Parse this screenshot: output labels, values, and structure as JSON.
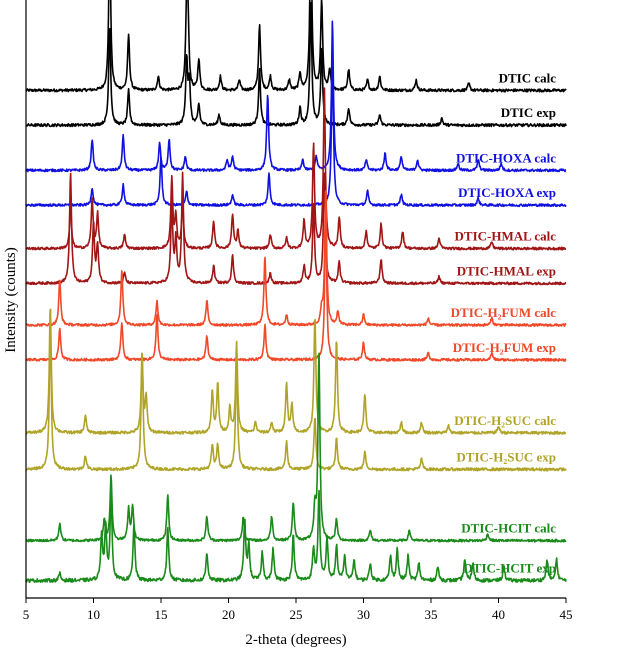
{
  "chart_data": {
    "type": "line",
    "xlabel": "2-theta (degrees)",
    "ylabel": "Intensity (counts)",
    "xlim": [
      5,
      45
    ],
    "xticks": [
      5,
      10,
      15,
      20,
      25,
      30,
      35,
      40,
      45
    ],
    "yticks_shown": false,
    "grid": false,
    "series": [
      {
        "name": "DTIC calc",
        "color": "#000000",
        "baseline": 8.0,
        "noise": 0.08,
        "peaks": [
          [
            11.2,
            4.6
          ],
          [
            12.6,
            1.6
          ],
          [
            14.8,
            0.4
          ],
          [
            16.9,
            2.3
          ],
          [
            17.0,
            1.7
          ],
          [
            17.8,
            0.9
          ],
          [
            19.4,
            0.4
          ],
          [
            20.8,
            0.3
          ],
          [
            22.3,
            1.9
          ],
          [
            23.1,
            0.4
          ],
          [
            24.5,
            0.3
          ],
          [
            25.3,
            0.5
          ],
          [
            26.1,
            5.0
          ],
          [
            26.9,
            2.6
          ],
          [
            27.5,
            0.6
          ],
          [
            28.9,
            0.6
          ],
          [
            30.3,
            0.3
          ],
          [
            31.2,
            0.4
          ],
          [
            33.9,
            0.3
          ],
          [
            37.8,
            0.2
          ]
        ]
      },
      {
        "name": "DTIC exp",
        "color": "#000000",
        "baseline": 7.0,
        "noise": 0.08,
        "peaks": [
          [
            11.2,
            2.9
          ],
          [
            12.6,
            1.0
          ],
          [
            16.9,
            1.9
          ],
          [
            17.1,
            1.2
          ],
          [
            17.8,
            0.6
          ],
          [
            19.3,
            0.3
          ],
          [
            22.3,
            1.6
          ],
          [
            25.3,
            0.5
          ],
          [
            26.1,
            3.5
          ],
          [
            26.9,
            2.2
          ],
          [
            28.9,
            0.5
          ],
          [
            31.2,
            0.3
          ],
          [
            35.8,
            0.2
          ]
        ]
      },
      {
        "name": "DTIC-HOXA calc",
        "color": "#1010e0",
        "baseline": 5.7,
        "noise": 0.07,
        "peaks": [
          [
            9.9,
            0.9
          ],
          [
            12.2,
            1.0
          ],
          [
            14.9,
            0.8
          ],
          [
            15.6,
            0.9
          ],
          [
            16.8,
            0.4
          ],
          [
            19.9,
            0.3
          ],
          [
            20.3,
            0.4
          ],
          [
            22.9,
            2.2
          ],
          [
            25.5,
            0.3
          ],
          [
            26.5,
            0.4
          ],
          [
            27.7,
            4.3
          ],
          [
            30.2,
            0.3
          ],
          [
            31.6,
            0.5
          ],
          [
            32.8,
            0.4
          ],
          [
            34.0,
            0.3
          ],
          [
            37.0,
            0.2
          ],
          [
            38.5,
            0.3
          ],
          [
            40.2,
            0.2
          ]
        ]
      },
      {
        "name": "DTIC-HOXA exp",
        "color": "#1010e0",
        "baseline": 4.7,
        "noise": 0.07,
        "peaks": [
          [
            9.9,
            0.5
          ],
          [
            12.2,
            0.6
          ],
          [
            15.0,
            1.4
          ],
          [
            16.9,
            0.4
          ],
          [
            20.3,
            0.3
          ],
          [
            23.0,
            0.9
          ],
          [
            27.7,
            4.3
          ],
          [
            30.3,
            0.4
          ],
          [
            32.8,
            0.3
          ],
          [
            38.5,
            0.2
          ]
        ]
      },
      {
        "name": "DTIC-HMAL calc",
        "color": "#a01515",
        "baseline": 3.45,
        "noise": 0.07,
        "peaks": [
          [
            8.3,
            1.2
          ],
          [
            9.9,
            1.4
          ],
          [
            10.3,
            1.0
          ],
          [
            12.3,
            0.4
          ],
          [
            15.8,
            2.0
          ],
          [
            16.1,
            0.9
          ],
          [
            16.6,
            1.3
          ],
          [
            18.9,
            0.8
          ],
          [
            20.3,
            1.0
          ],
          [
            20.7,
            0.5
          ],
          [
            23.1,
            0.4
          ],
          [
            24.3,
            0.3
          ],
          [
            25.6,
            0.8
          ],
          [
            26.3,
            3.0
          ],
          [
            27.1,
            4.6
          ],
          [
            28.2,
            0.9
          ],
          [
            30.2,
            0.5
          ],
          [
            31.3,
            0.7
          ],
          [
            32.9,
            0.5
          ],
          [
            35.6,
            0.3
          ],
          [
            39.5,
            0.2
          ]
        ]
      },
      {
        "name": "DTIC-HMAL exp",
        "color": "#a01515",
        "baseline": 2.45,
        "noise": 0.07,
        "peaks": [
          [
            8.3,
            3.2
          ],
          [
            10.0,
            1.7
          ],
          [
            10.3,
            1.1
          ],
          [
            12.3,
            0.3
          ],
          [
            15.8,
            2.3
          ],
          [
            16.1,
            1.2
          ],
          [
            16.6,
            3.1
          ],
          [
            18.9,
            0.5
          ],
          [
            20.3,
            0.8
          ],
          [
            23.1,
            0.3
          ],
          [
            25.6,
            0.5
          ],
          [
            26.3,
            2.3
          ],
          [
            27.1,
            3.2
          ],
          [
            28.2,
            0.6
          ],
          [
            31.3,
            0.7
          ],
          [
            35.6,
            0.2
          ]
        ]
      },
      {
        "name": "DTIC-H₂FUM calc",
        "color": "#f04828",
        "baseline": 1.25,
        "noise": 0.07,
        "peaks": [
          [
            7.5,
            1.3
          ],
          [
            12.1,
            1.6
          ],
          [
            14.7,
            0.7
          ],
          [
            18.4,
            0.7
          ],
          [
            22.7,
            2.0
          ],
          [
            24.3,
            0.3
          ],
          [
            26.9,
            0.4
          ],
          [
            27.2,
            4.0
          ],
          [
            28.1,
            0.4
          ],
          [
            30.0,
            0.3
          ],
          [
            34.8,
            0.2
          ],
          [
            39.5,
            0.2
          ]
        ]
      },
      {
        "name": "DTIC-H₂FUM exp",
        "color": "#f04828",
        "baseline": 0.25,
        "noise": 0.07,
        "peaks": [
          [
            7.5,
            0.9
          ],
          [
            12.1,
            1.1
          ],
          [
            14.7,
            1.3
          ],
          [
            18.4,
            0.7
          ],
          [
            22.7,
            1.0
          ],
          [
            27.2,
            4.3
          ],
          [
            30.0,
            0.5
          ],
          [
            34.8,
            0.2
          ],
          [
            39.5,
            0.2
          ]
        ]
      },
      {
        "name": "DTIC-H₂SUC calc",
        "color": "#b0a428",
        "baseline": -1.85,
        "noise": 0.08,
        "peaks": [
          [
            6.8,
            3.7
          ],
          [
            9.4,
            0.5
          ],
          [
            13.6,
            2.1
          ],
          [
            13.9,
            1.0
          ],
          [
            18.8,
            1.2
          ],
          [
            19.2,
            1.4
          ],
          [
            20.1,
            0.7
          ],
          [
            20.6,
            2.6
          ],
          [
            22.0,
            0.3
          ],
          [
            23.2,
            0.3
          ],
          [
            24.3,
            1.4
          ],
          [
            24.7,
            0.8
          ],
          [
            26.4,
            3.4
          ],
          [
            28.0,
            2.7
          ],
          [
            30.1,
            1.1
          ],
          [
            32.8,
            0.3
          ],
          [
            34.3,
            0.3
          ],
          [
            36.3,
            0.2
          ],
          [
            40.0,
            0.2
          ]
        ]
      },
      {
        "name": "DTIC-H₂SUC exp",
        "color": "#b0a428",
        "baseline": -2.9,
        "noise": 0.08,
        "peaks": [
          [
            6.8,
            4.2
          ],
          [
            9.4,
            0.4
          ],
          [
            13.6,
            3.5
          ],
          [
            18.8,
            0.7
          ],
          [
            19.2,
            0.7
          ],
          [
            20.6,
            3.2
          ],
          [
            24.3,
            0.8
          ],
          [
            26.4,
            1.5
          ],
          [
            28.0,
            0.9
          ],
          [
            30.1,
            0.5
          ],
          [
            34.3,
            0.3
          ]
        ]
      },
      {
        "name": "DTIC-HCIT calc",
        "color": "#1a8a1a",
        "baseline": -4.95,
        "noise": 0.07,
        "peaks": [
          [
            7.5,
            0.5
          ],
          [
            10.8,
            0.6
          ],
          [
            11.3,
            1.9
          ],
          [
            12.6,
            0.9
          ],
          [
            12.9,
            1.0
          ],
          [
            15.5,
            1.3
          ],
          [
            18.4,
            0.7
          ],
          [
            21.1,
            0.7
          ],
          [
            23.2,
            0.7
          ],
          [
            24.8,
            1.1
          ],
          [
            26.4,
            0.9
          ],
          [
            26.7,
            5.4
          ],
          [
            28.0,
            0.6
          ],
          [
            30.5,
            0.3
          ],
          [
            33.4,
            0.3
          ],
          [
            39.2,
            0.2
          ]
        ]
      },
      {
        "name": "DTIC-HCIT exp",
        "color": "#1a8a1a",
        "baseline": -6.1,
        "noise": 0.1,
        "peaks": [
          [
            7.5,
            0.2
          ],
          [
            10.6,
            1.3
          ],
          [
            10.9,
            1.5
          ],
          [
            11.3,
            2.5
          ],
          [
            13.0,
            1.6
          ],
          [
            15.5,
            1.5
          ],
          [
            18.4,
            0.8
          ],
          [
            21.2,
            1.7
          ],
          [
            21.5,
            1.0
          ],
          [
            22.5,
            0.8
          ],
          [
            23.3,
            0.9
          ],
          [
            24.8,
            1.3
          ],
          [
            26.3,
            0.9
          ],
          [
            26.7,
            2.5
          ],
          [
            27.3,
            1.2
          ],
          [
            28.0,
            1.0
          ],
          [
            28.6,
            0.7
          ],
          [
            29.3,
            0.6
          ],
          [
            30.5,
            0.5
          ],
          [
            32.0,
            0.7
          ],
          [
            32.5,
            0.9
          ],
          [
            33.3,
            0.7
          ],
          [
            34.1,
            0.5
          ],
          [
            35.5,
            0.4
          ],
          [
            37.5,
            0.6
          ],
          [
            38.1,
            0.5
          ],
          [
            40.4,
            0.4
          ],
          [
            43.6,
            0.6
          ],
          [
            44.3,
            0.6
          ]
        ]
      }
    ],
    "y_model": {
      "ymin": -6.6,
      "ymax": 10.6
    }
  }
}
